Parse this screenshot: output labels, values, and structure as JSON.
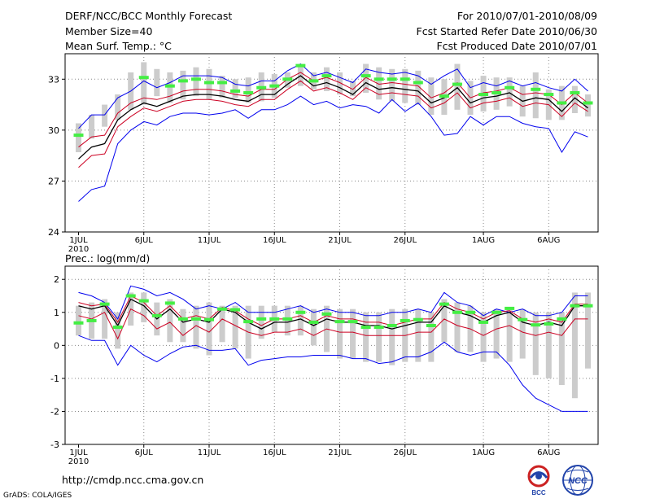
{
  "header": {
    "title": "DERF/NCC/BCC Monthly Forecast",
    "member_size": "Member Size=40",
    "variable": "Mean Surf. Temp.: °C",
    "forecast_period": "For 2010/07/01-2010/08/09",
    "refer_date": "Fcst Started Refer Date 2010/06/30",
    "produced_date": "Fcst Produced Date 2010/07/01"
  },
  "footer": {
    "url": "http://cmdp.ncc.cma.gov.cn",
    "credit": "GrADS: COLA/IGES",
    "logo_left": "BCC",
    "logo_right": "NCC"
  },
  "colors": {
    "envelope": "#0000ee",
    "spread": "#cc0022",
    "ensemble_mean": "#000000",
    "bar": "#cccccc",
    "observed": "#44ee44",
    "grid": "#888888"
  },
  "chart_data": [
    {
      "type": "line",
      "title": "Mean Surf. Temp.: °C",
      "x_start_label": "2010",
      "x_tick_labels": [
        "1JUL",
        "6JUL",
        "11JUL",
        "16JUL",
        "21JUL",
        "26JUL",
        "1AUG",
        "6AUG"
      ],
      "x_tick_days": [
        1,
        6,
        11,
        16,
        21,
        26,
        32,
        37
      ],
      "ylim": [
        24,
        34.5
      ],
      "y_ticks": [
        24,
        27,
        30,
        33
      ],
      "series": [
        {
          "name": "max",
          "values": [
            30.1,
            30.9,
            30.9,
            31.9,
            32.3,
            32.9,
            32.5,
            32.8,
            33.2,
            33.2,
            33.2,
            33.1,
            32.7,
            32.6,
            32.9,
            32.9,
            33.5,
            33.9,
            33.2,
            33.4,
            33.1,
            32.8,
            33.6,
            33.4,
            33.3,
            33.4,
            33.2,
            32.7,
            33.2,
            33.6,
            32.5,
            32.8,
            32.6,
            32.9,
            32.6,
            32.8,
            32.5,
            32.3,
            33.0,
            32.3
          ]
        },
        {
          "name": "mean",
          "values": [
            28.3,
            29.0,
            29.2,
            30.6,
            31.2,
            31.6,
            31.4,
            31.7,
            32.0,
            32.1,
            32.1,
            32.0,
            31.8,
            31.7,
            32.1,
            32.1,
            32.7,
            33.2,
            32.6,
            32.8,
            32.5,
            32.1,
            32.8,
            32.4,
            32.5,
            32.4,
            32.3,
            31.6,
            31.9,
            32.5,
            31.6,
            31.9,
            32.0,
            32.2,
            31.7,
            31.9,
            31.8,
            31.1,
            31.9,
            31.3
          ]
        },
        {
          "name": "p80",
          "values": [
            29.0,
            29.6,
            29.7,
            31.0,
            31.6,
            31.9,
            31.8,
            32.0,
            32.3,
            32.4,
            32.4,
            32.3,
            32.1,
            32.0,
            32.4,
            32.4,
            33.0,
            33.4,
            32.9,
            33.1,
            32.8,
            32.4,
            33.1,
            32.7,
            32.8,
            32.7,
            32.6,
            31.9,
            32.2,
            32.8,
            31.9,
            32.2,
            32.3,
            32.5,
            32.1,
            32.2,
            32.1,
            31.5,
            32.2,
            31.6
          ]
        },
        {
          "name": "p20",
          "values": [
            27.8,
            28.5,
            28.6,
            30.2,
            30.8,
            31.3,
            31.1,
            31.4,
            31.7,
            31.8,
            31.8,
            31.7,
            31.5,
            31.4,
            31.8,
            31.8,
            32.4,
            32.9,
            32.3,
            32.5,
            32.2,
            31.8,
            32.5,
            32.1,
            32.2,
            32.1,
            32.0,
            31.3,
            31.6,
            32.2,
            31.3,
            31.6,
            31.7,
            31.9,
            31.4,
            31.6,
            31.5,
            30.8,
            31.6,
            31.1
          ]
        },
        {
          "name": "min",
          "values": [
            25.8,
            26.5,
            26.7,
            29.2,
            30.0,
            30.5,
            30.3,
            30.8,
            31.0,
            31.0,
            30.9,
            31.0,
            31.2,
            30.7,
            31.2,
            31.2,
            31.5,
            32.0,
            31.5,
            31.7,
            31.3,
            31.5,
            31.4,
            31.0,
            31.8,
            31.1,
            31.6,
            30.8,
            29.7,
            29.8,
            30.8,
            30.3,
            30.8,
            30.8,
            30.4,
            30.2,
            30.1,
            28.7,
            29.9,
            29.6
          ]
        }
      ],
      "bars": {
        "low": [
          28.7,
          29.5,
          30.2,
          30.6,
          31.2,
          31.5,
          32.0,
          31.6,
          31.8,
          32.0,
          31.8,
          31.9,
          31.9,
          31.6,
          31.7,
          31.9,
          32.5,
          32.6,
          32.4,
          32.3,
          32.1,
          32.0,
          32.2,
          31.8,
          31.7,
          31.6,
          31.5,
          30.9,
          30.9,
          31.2,
          30.9,
          31.1,
          31.2,
          31.4,
          30.8,
          30.7,
          30.6,
          30.6,
          31.0,
          30.8
        ],
        "high": [
          30.4,
          30.9,
          31.5,
          32.1,
          33.4,
          34.0,
          33.6,
          33.4,
          33.5,
          33.7,
          33.6,
          33.2,
          33.0,
          33.1,
          33.4,
          33.3,
          33.4,
          33.9,
          33.4,
          33.7,
          33.4,
          32.9,
          33.9,
          33.7,
          33.6,
          33.6,
          33.5,
          33.1,
          33.0,
          33.9,
          32.9,
          33.2,
          33.1,
          33.1,
          32.6,
          33.4,
          32.4,
          32.6,
          32.6,
          32.1
        ]
      },
      "observed": [
        29.7,
        null,
        null,
        null,
        null,
        33.1,
        null,
        32.6,
        32.9,
        33.0,
        32.8,
        32.8,
        32.3,
        32.2,
        32.5,
        32.6,
        33.0,
        33.8,
        32.9,
        33.2,
        null,
        null,
        33.2,
        33.0,
        33.0,
        33.0,
        32.8,
        null,
        32.0,
        32.7,
        null,
        32.1,
        32.2,
        32.5,
        null,
        32.4,
        32.1,
        31.6,
        32.2,
        31.6
      ]
    },
    {
      "type": "line",
      "title": "Prec.: log(mm/d)",
      "x_start_label": "2010",
      "x_tick_labels": [
        "1JUL",
        "6JUL",
        "11JUL",
        "16JUL",
        "21JUL",
        "26JUL",
        "1AUG",
        "6AUG"
      ],
      "x_tick_days": [
        1,
        6,
        11,
        16,
        21,
        26,
        32,
        37
      ],
      "ylim": [
        -3,
        2.4
      ],
      "y_ticks": [
        -3,
        -2,
        -1,
        0,
        1,
        2
      ],
      "series": [
        {
          "name": "max",
          "values": [
            1.6,
            1.5,
            1.3,
            0.8,
            1.8,
            1.7,
            1.5,
            1.6,
            1.4,
            1.1,
            1.2,
            1.1,
            1.3,
            1.0,
            1.0,
            1.0,
            1.1,
            1.2,
            1.0,
            1.1,
            1.0,
            1.0,
            0.9,
            0.9,
            1.0,
            1.0,
            1.1,
            1.0,
            1.6,
            1.3,
            1.2,
            0.9,
            1.1,
            1.0,
            1.1,
            0.9,
            0.9,
            1.0,
            1.5,
            1.5
          ]
        },
        {
          "name": "mean",
          "values": [
            1.2,
            1.1,
            1.2,
            0.6,
            1.4,
            1.2,
            0.8,
            1.1,
            0.7,
            0.8,
            0.7,
            1.1,
            1.0,
            0.7,
            0.5,
            0.7,
            0.7,
            0.8,
            0.6,
            0.8,
            0.7,
            0.7,
            0.6,
            0.6,
            0.5,
            0.6,
            0.7,
            0.7,
            1.2,
            1.0,
            0.9,
            0.7,
            0.9,
            1.0,
            0.7,
            0.6,
            0.7,
            0.6,
            1.2,
            1.2
          ]
        },
        {
          "name": "p80",
          "values": [
            1.3,
            1.2,
            1.25,
            0.7,
            1.5,
            1.3,
            0.9,
            1.2,
            0.8,
            0.9,
            0.8,
            1.15,
            1.05,
            0.8,
            0.6,
            0.8,
            0.8,
            0.9,
            0.7,
            0.9,
            0.8,
            0.8,
            0.7,
            0.7,
            0.6,
            0.7,
            0.8,
            0.8,
            1.3,
            1.1,
            1.0,
            0.8,
            1.0,
            1.05,
            0.8,
            0.7,
            0.8,
            0.7,
            1.25,
            1.25
          ]
        },
        {
          "name": "p20",
          "values": [
            0.9,
            0.8,
            1.0,
            0.2,
            1.1,
            0.9,
            0.5,
            0.7,
            0.3,
            0.6,
            0.4,
            0.8,
            0.6,
            0.4,
            0.3,
            0.4,
            0.4,
            0.5,
            0.3,
            0.5,
            0.4,
            0.4,
            0.3,
            0.3,
            0.3,
            0.3,
            0.4,
            0.4,
            0.8,
            0.6,
            0.5,
            0.3,
            0.5,
            0.6,
            0.4,
            0.3,
            0.4,
            0.3,
            0.8,
            0.8
          ]
        },
        {
          "name": "min",
          "values": [
            0.3,
            0.15,
            0.15,
            -0.6,
            0.0,
            -0.3,
            -0.5,
            -0.25,
            -0.05,
            0.0,
            -0.15,
            -0.15,
            -0.1,
            -0.6,
            -0.45,
            -0.4,
            -0.35,
            -0.35,
            -0.3,
            -0.3,
            -0.3,
            -0.4,
            -0.4,
            -0.55,
            -0.5,
            -0.35,
            -0.35,
            -0.2,
            0.1,
            -0.2,
            -0.3,
            -0.2,
            -0.2,
            -0.6,
            -1.2,
            -1.6,
            -1.8,
            -2.0,
            -2.0,
            -2.0
          ]
        }
      ],
      "bars": {
        "low": [
          0.3,
          0.2,
          0.2,
          -0.1,
          0.6,
          0.7,
          0.3,
          0.1,
          0.1,
          -0.1,
          -0.3,
          0.1,
          -0.1,
          -0.4,
          0.2,
          0.4,
          0.3,
          0.3,
          0.0,
          -0.2,
          -0.4,
          -0.4,
          -0.5,
          -0.5,
          -0.6,
          -0.5,
          -0.5,
          -0.5,
          0.1,
          -0.2,
          -0.2,
          -0.5,
          -0.4,
          -0.5,
          -0.4,
          -0.9,
          -1.0,
          -1.2,
          -1.6,
          -0.7
        ],
        "high": [
          1.2,
          1.3,
          1.4,
          1.0,
          1.6,
          1.6,
          1.3,
          1.4,
          1.1,
          1.2,
          1.3,
          1.2,
          1.2,
          1.2,
          1.2,
          1.2,
          1.2,
          1.2,
          1.1,
          1.2,
          1.1,
          1.1,
          1.0,
          1.0,
          1.1,
          1.1,
          1.1,
          1.0,
          1.4,
          1.3,
          1.2,
          1.0,
          1.1,
          1.1,
          1.1,
          1.0,
          1.0,
          1.0,
          1.6,
          1.6
        ]
      },
      "observed": [
        0.68,
        0.75,
        1.25,
        0.55,
        1.5,
        1.35,
        0.9,
        1.28,
        0.8,
        0.8,
        0.78,
        1.1,
        1.08,
        0.72,
        0.8,
        0.8,
        0.8,
        1.0,
        0.7,
        0.95,
        0.72,
        0.72,
        0.55,
        0.55,
        0.6,
        0.75,
        0.78,
        0.6,
        1.25,
        1.0,
        1.0,
        0.7,
        1.0,
        1.12,
        0.78,
        0.62,
        0.65,
        0.8,
        1.2,
        1.2
      ]
    }
  ]
}
